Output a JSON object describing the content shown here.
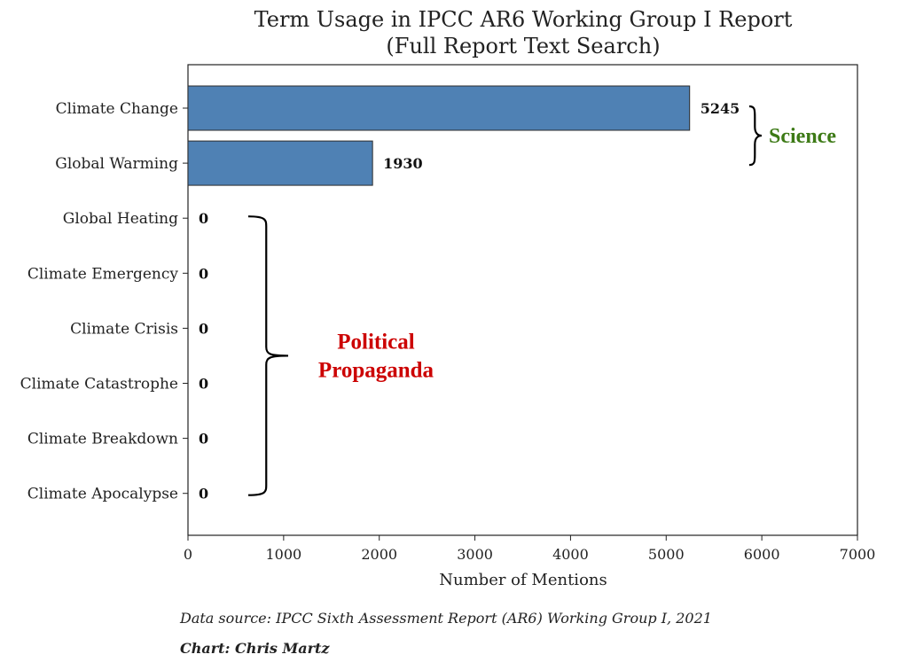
{
  "chart_data": {
    "type": "bar",
    "orientation": "horizontal",
    "title": [
      "Term Usage in IPCC AR6 Working Group I Report",
      "(Full Report Text Search)"
    ],
    "xlabel": "Number of Mentions",
    "ylabel": "",
    "xlim": [
      0,
      7000
    ],
    "xticks": [
      0,
      1000,
      2000,
      3000,
      4000,
      5000,
      6000,
      7000
    ],
    "categories": [
      "Climate Change",
      "Global Warming",
      "Global Heating",
      "Climate Emergency",
      "Climate Crisis",
      "Climate Catastrophe",
      "Climate Breakdown",
      "Climate Apocalypse"
    ],
    "values": [
      5245,
      1930,
      0,
      0,
      0,
      0,
      0,
      0
    ],
    "bar_color": "#4f81b4",
    "grid": false,
    "legend": "none",
    "groups": [
      {
        "label": "Science",
        "lines": [
          "Science"
        ],
        "color": "#3d7a16",
        "from_category": 0,
        "to_category": 1
      },
      {
        "label": "Political Propaganda",
        "lines": [
          "Political",
          "Propaganda"
        ],
        "color": "#cc0000",
        "from_category": 2,
        "to_category": 7
      }
    ]
  },
  "footer": {
    "source": "Data source: IPCC Sixth Assessment Report (AR6) Working Group I, 2021",
    "credit": "Chart: Chris Martz"
  }
}
